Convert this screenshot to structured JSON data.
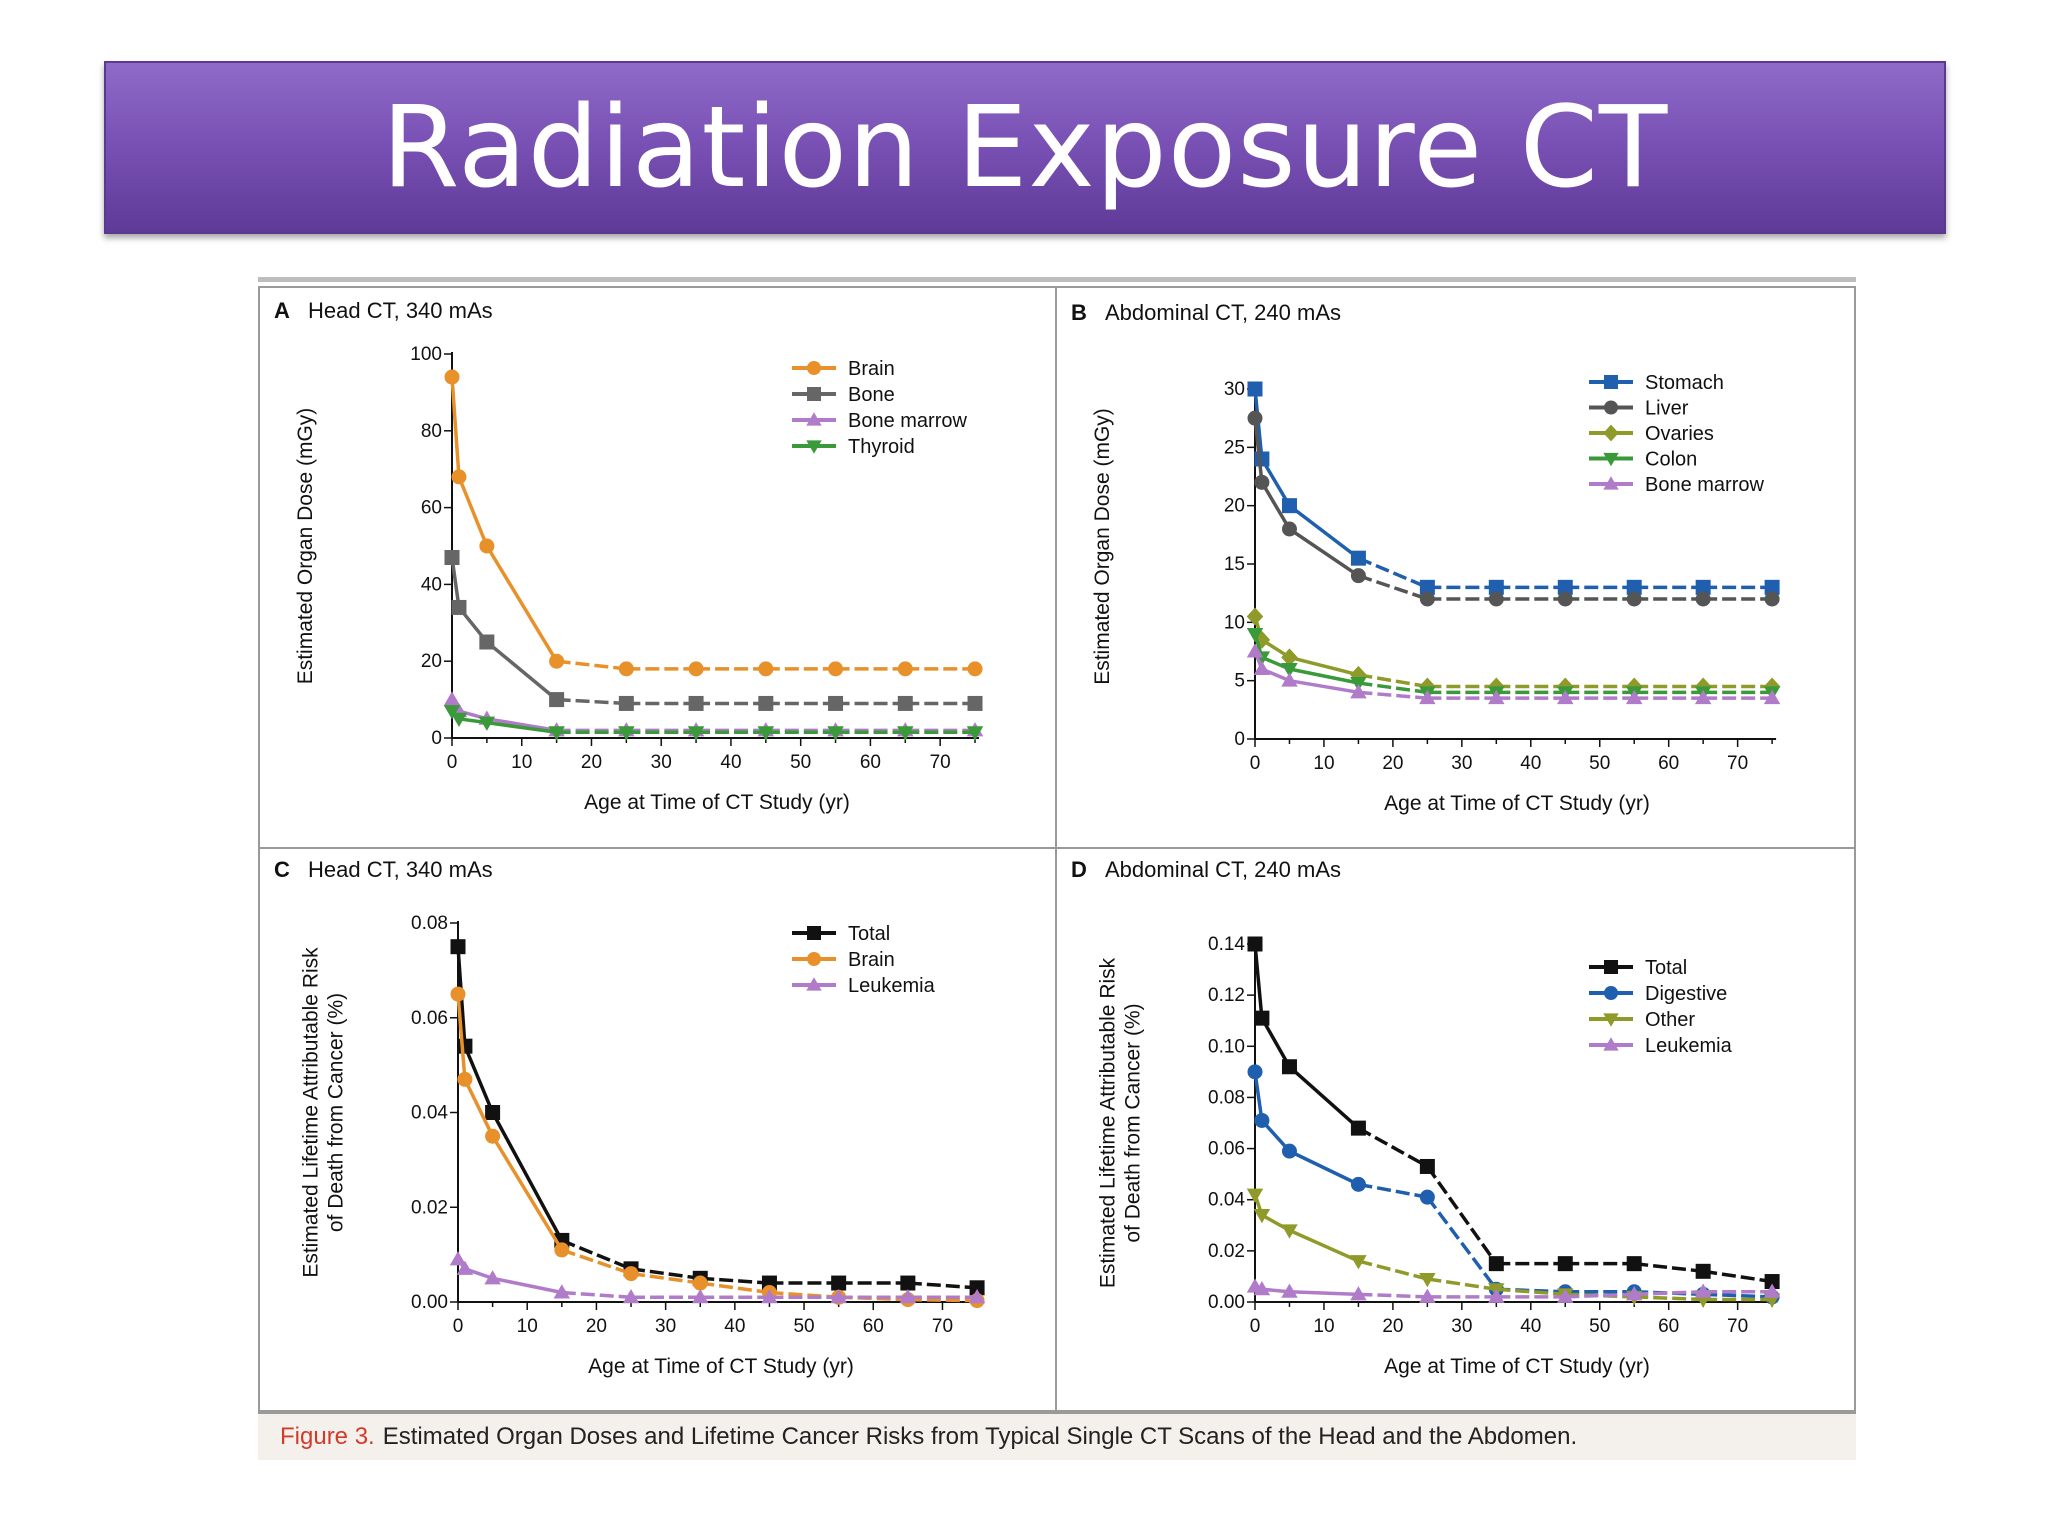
{
  "slide": {
    "title": "Radiation Exposure CT"
  },
  "caption": {
    "label": "Figure 3.",
    "text": "Estimated Organ Doses and Lifetime Cancer Risks from Typical Single CT Scans of the Head and the Abdomen."
  },
  "chart_data": [
    {
      "panel": "A",
      "type": "line",
      "title": "Head CT, 340 mAs",
      "xlabel": "Age at Time of CT Study (yr)",
      "ylabel": "Estimated Organ Dose (mGy)",
      "xlim": [
        0,
        76
      ],
      "ylim": [
        0,
        100
      ],
      "xticks": [
        0,
        10,
        20,
        30,
        40,
        50,
        60,
        70
      ],
      "yticks": [
        0,
        20,
        40,
        60,
        80,
        100
      ],
      "ytick_labels": [
        "0",
        "20",
        "40",
        "60",
        "80",
        "100"
      ],
      "legend_position": "top-right",
      "x": [
        0,
        1,
        5,
        15,
        25,
        35,
        45,
        55,
        65,
        75
      ],
      "series": [
        {
          "name": "Brain",
          "color": "#e8902a",
          "marker": "circle",
          "values": [
            94,
            68,
            50,
            20,
            18,
            18,
            18,
            18,
            18,
            18
          ]
        },
        {
          "name": "Bone",
          "color": "#666666",
          "marker": "square",
          "values": [
            47,
            34,
            25,
            10,
            9,
            9,
            9,
            9,
            9,
            9
          ]
        },
        {
          "name": "Bone marrow",
          "color": "#b07cc9",
          "marker": "triangle-up",
          "values": [
            10,
            7,
            5,
            2,
            2,
            2,
            2,
            2,
            2,
            2
          ]
        },
        {
          "name": "Thyroid",
          "color": "#3a9a3a",
          "marker": "triangle-down",
          "values": [
            7,
            5,
            4,
            1.5,
            1.5,
            1.5,
            1.5,
            1.5,
            1.5,
            1.5
          ]
        }
      ]
    },
    {
      "panel": "B",
      "type": "line",
      "title": "Abdominal CT, 240 mAs",
      "xlabel": "Age at Time of CT Study (yr)",
      "ylabel": "Estimated Organ Dose (mGy)",
      "xlim": [
        0,
        76
      ],
      "ylim": [
        0,
        33
      ],
      "xticks": [
        0,
        10,
        20,
        30,
        40,
        50,
        60,
        70
      ],
      "yticks": [
        0,
        5,
        10,
        15,
        20,
        25,
        30
      ],
      "ytick_labels": [
        "0",
        "5",
        "10",
        "15",
        "20",
        "25",
        "30"
      ],
      "legend_position": "top-right",
      "x": [
        0,
        1,
        5,
        15,
        25,
        35,
        45,
        55,
        65,
        75
      ],
      "series": [
        {
          "name": "Stomach",
          "color": "#1f5fae",
          "marker": "square",
          "values": [
            30,
            24,
            20,
            15.5,
            13,
            13,
            13,
            13,
            13,
            13
          ]
        },
        {
          "name": "Liver",
          "color": "#555555",
          "marker": "circle",
          "values": [
            27.5,
            22,
            18,
            14,
            12,
            12,
            12,
            12,
            12,
            12
          ]
        },
        {
          "name": "Ovaries",
          "color": "#8f9a28",
          "marker": "diamond",
          "values": [
            10.5,
            8.5,
            7,
            5.5,
            4.5,
            4.5,
            4.5,
            4.5,
            4.5,
            4.5
          ]
        },
        {
          "name": "Colon",
          "color": "#3a9a3a",
          "marker": "triangle-down",
          "values": [
            9,
            7,
            6,
            4.8,
            4,
            4,
            4,
            4,
            4,
            4
          ]
        },
        {
          "name": "Bone marrow",
          "color": "#b07cc9",
          "marker": "triangle-up",
          "values": [
            7.5,
            6,
            5,
            4,
            3.5,
            3.5,
            3.5,
            3.5,
            3.5,
            3.5
          ]
        }
      ]
    },
    {
      "panel": "C",
      "type": "line",
      "title": "Head CT, 340 mAs",
      "xlabel": "Age at Time of CT Study (yr)",
      "ylabel": "Estimated Lifetime Attributable Risk of Death from Cancer (%)",
      "xlim": [
        0,
        76
      ],
      "ylim": [
        0,
        0.08
      ],
      "xticks": [
        0,
        10,
        20,
        30,
        40,
        50,
        60,
        70
      ],
      "yticks": [
        0,
        0.02,
        0.04,
        0.06,
        0.08
      ],
      "ytick_labels": [
        "0.00",
        "0.02",
        "0.04",
        "0.06",
        "0.08"
      ],
      "legend_position": "top-right",
      "x": [
        0,
        1,
        5,
        15,
        25,
        35,
        45,
        55,
        65,
        75
      ],
      "series": [
        {
          "name": "Total",
          "color": "#111111",
          "marker": "square",
          "values": [
            0.075,
            0.054,
            0.04,
            0.013,
            0.007,
            0.005,
            0.004,
            0.004,
            0.004,
            0.003
          ]
        },
        {
          "name": "Brain",
          "color": "#e8902a",
          "marker": "circle",
          "values": [
            0.065,
            0.047,
            0.035,
            0.011,
            0.006,
            0.004,
            0.002,
            0.001,
            0.0005,
            0.0003
          ]
        },
        {
          "name": "Leukemia",
          "color": "#b07cc9",
          "marker": "triangle-up",
          "values": [
            0.009,
            0.007,
            0.005,
            0.002,
            0.001,
            0.001,
            0.001,
            0.001,
            0.001,
            0.001
          ]
        }
      ]
    },
    {
      "panel": "D",
      "type": "line",
      "title": "Abdominal CT, 240 mAs",
      "xlabel": "Age at Time of CT Study (yr)",
      "ylabel": "Estimated Lifetime Attributable Risk of Death from Cancer (%)",
      "xlim": [
        0,
        76
      ],
      "ylim": [
        0,
        0.14
      ],
      "xticks": [
        0,
        10,
        20,
        30,
        40,
        50,
        60,
        70
      ],
      "yticks": [
        0,
        0.02,
        0.04,
        0.06,
        0.08,
        0.1,
        0.12,
        0.14
      ],
      "ytick_labels": [
        "0.00",
        "0.02",
        "0.04",
        "0.06",
        "0.08",
        "0.10",
        "0.12",
        "0.14"
      ],
      "legend_position": "top-right",
      "x": [
        0,
        1,
        5,
        15,
        25,
        35,
        45,
        55,
        65,
        75
      ],
      "series": [
        {
          "name": "Total",
          "color": "#111111",
          "marker": "square",
          "values": [
            0.14,
            0.111,
            0.092,
            0.068,
            0.053,
            0.015,
            0.015,
            0.015,
            0.012,
            0.008
          ]
        },
        {
          "name": "Digestive",
          "color": "#1f5fae",
          "marker": "circle",
          "values": [
            0.09,
            0.071,
            0.059,
            0.046,
            0.041,
            0.005,
            0.004,
            0.004,
            0.003,
            0.002
          ]
        },
        {
          "name": "Other",
          "color": "#8f9a28",
          "marker": "triangle-down",
          "values": [
            0.042,
            0.034,
            0.028,
            0.016,
            0.009,
            0.005,
            0.003,
            0.002,
            0.001,
            0.001
          ]
        },
        {
          "name": "Leukemia",
          "color": "#b07cc9",
          "marker": "triangle-up",
          "values": [
            0.006,
            0.005,
            0.004,
            0.003,
            0.002,
            0.002,
            0.002,
            0.003,
            0.004,
            0.004
          ]
        }
      ]
    }
  ]
}
